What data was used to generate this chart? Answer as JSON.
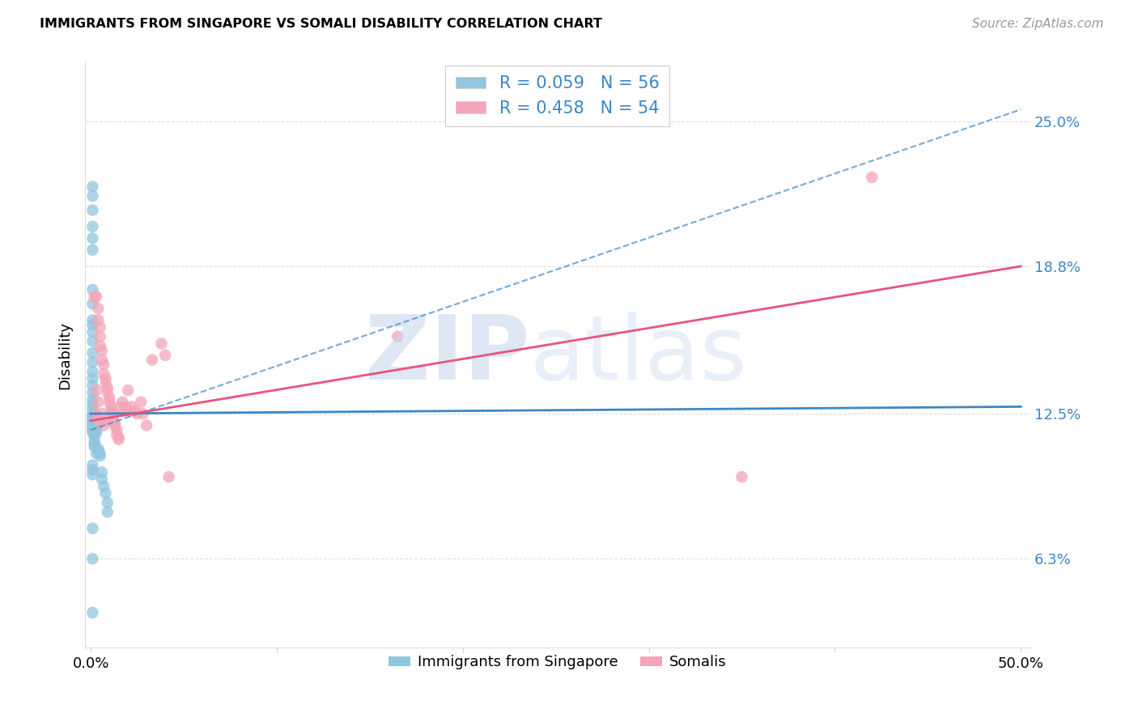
{
  "title": "IMMIGRANTS FROM SINGAPORE VS SOMALI DISABILITY CORRELATION CHART",
  "source": "Source: ZipAtlas.com",
  "y_ticks": [
    0.063,
    0.125,
    0.188,
    0.25
  ],
  "y_tick_labels": [
    "6.3%",
    "12.5%",
    "18.8%",
    "25.0%"
  ],
  "x_ticks": [
    0.0,
    0.1,
    0.2,
    0.3,
    0.4,
    0.5
  ],
  "x_tick_labels": [
    "0.0%",
    "",
    "",
    "",
    "",
    "50.0%"
  ],
  "xlim": [
    -0.003,
    0.505
  ],
  "ylim": [
    0.025,
    0.275
  ],
  "legend_line1": "R = 0.059   N = 56",
  "legend_line2": "R = 0.458   N = 54",
  "color_blue": "#92c5de",
  "color_pink": "#f4a5b8",
  "color_blue_line": "#3a87c8",
  "color_pink_line": "#e8547a",
  "color_legend_text": "#3a87c8",
  "ylabel": "Disability",
  "watermark_zip": "ZIP",
  "watermark_atlas": "atlas",
  "blue_line_x": [
    0.0,
    0.5
  ],
  "blue_line_y": [
    0.125,
    0.128
  ],
  "blue_dashed_line_x": [
    0.0,
    0.5
  ],
  "blue_dashed_line_y": [
    0.118,
    0.255
  ],
  "pink_line_x": [
    0.0,
    0.5
  ],
  "pink_line_y": [
    0.122,
    0.188
  ],
  "blue_x": [
    0.001,
    0.001,
    0.001,
    0.001,
    0.001,
    0.001,
    0.001,
    0.001,
    0.001,
    0.001,
    0.001,
    0.001,
    0.001,
    0.001,
    0.001,
    0.001,
    0.001,
    0.001,
    0.001,
    0.001,
    0.001,
    0.001,
    0.001,
    0.001,
    0.001,
    0.001,
    0.001,
    0.001,
    0.001,
    0.001,
    0.002,
    0.002,
    0.002,
    0.002,
    0.002,
    0.002,
    0.003,
    0.003,
    0.003,
    0.003,
    0.004,
    0.004,
    0.005,
    0.005,
    0.006,
    0.006,
    0.007,
    0.008,
    0.009,
    0.009,
    0.001,
    0.001,
    0.001,
    0.001,
    0.001,
    0.001
  ],
  "blue_y": [
    0.222,
    0.218,
    0.212,
    0.205,
    0.2,
    0.195,
    0.178,
    0.172,
    0.165,
    0.163,
    0.16,
    0.156,
    0.151,
    0.147,
    0.143,
    0.14,
    0.137,
    0.134,
    0.131,
    0.129,
    0.127,
    0.125,
    0.124,
    0.123,
    0.122,
    0.121,
    0.12,
    0.119,
    0.118,
    0.117,
    0.116,
    0.115,
    0.113,
    0.112,
    0.111,
    0.125,
    0.12,
    0.118,
    0.117,
    0.108,
    0.11,
    0.109,
    0.108,
    0.107,
    0.1,
    0.097,
    0.094,
    0.091,
    0.087,
    0.083,
    0.103,
    0.101,
    0.099,
    0.076,
    0.063,
    0.04
  ],
  "pink_x": [
    0.002,
    0.003,
    0.004,
    0.004,
    0.005,
    0.005,
    0.005,
    0.006,
    0.006,
    0.007,
    0.007,
    0.008,
    0.008,
    0.009,
    0.009,
    0.01,
    0.01,
    0.011,
    0.011,
    0.012,
    0.012,
    0.012,
    0.013,
    0.013,
    0.014,
    0.014,
    0.015,
    0.015,
    0.016,
    0.017,
    0.018,
    0.019,
    0.02,
    0.021,
    0.022,
    0.024,
    0.025,
    0.027,
    0.028,
    0.03,
    0.033,
    0.038,
    0.04,
    0.042,
    0.003,
    0.004,
    0.005,
    0.006,
    0.007,
    0.008,
    0.35,
    0.42,
    0.003,
    0.165
  ],
  "pink_y": [
    0.175,
    0.175,
    0.17,
    0.165,
    0.162,
    0.158,
    0.154,
    0.152,
    0.148,
    0.146,
    0.142,
    0.14,
    0.138,
    0.136,
    0.134,
    0.132,
    0.13,
    0.128,
    0.126,
    0.125,
    0.123,
    0.122,
    0.121,
    0.12,
    0.118,
    0.116,
    0.115,
    0.114,
    0.128,
    0.13,
    0.126,
    0.128,
    0.135,
    0.126,
    0.128,
    0.126,
    0.125,
    0.13,
    0.125,
    0.12,
    0.148,
    0.155,
    0.15,
    0.098,
    0.125,
    0.13,
    0.122,
    0.125,
    0.12,
    0.122,
    0.098,
    0.226,
    0.135,
    0.158
  ]
}
